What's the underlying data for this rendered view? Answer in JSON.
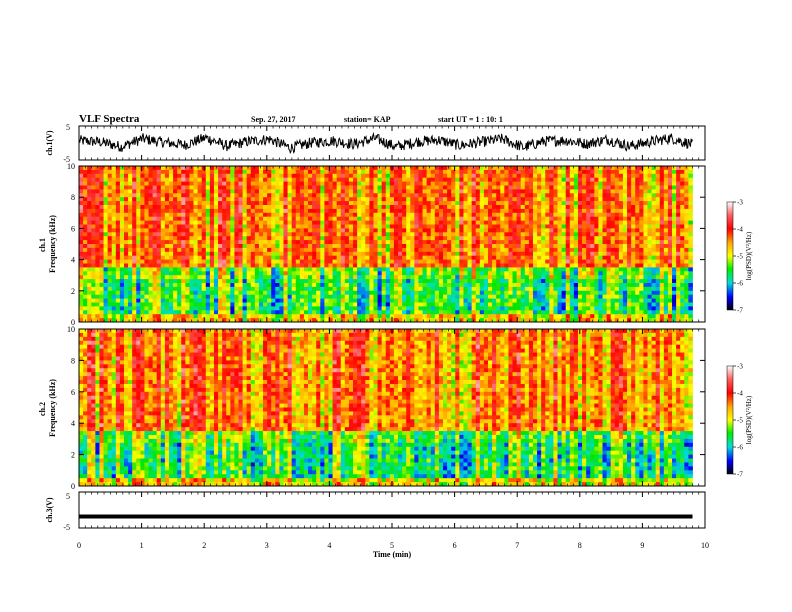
{
  "header": {
    "title": "VLF Spectra",
    "date": "Sep. 27, 2017",
    "station": "station= KAP",
    "start": "start  UT =   1 : 10: 1"
  },
  "chart_data": [
    {
      "type": "line",
      "panel": "ch1-waveform",
      "ylabel": "ch.1(V)",
      "ylim": [
        -5,
        5
      ],
      "yticks": [
        "5",
        "-5"
      ],
      "xlim": [
        0,
        10
      ],
      "x_end": 9.8,
      "description_of_series": "noisy voltage trace around 0 V, amplitude about 1-3 V",
      "series": [
        {
          "values": [
            1.2,
            0.5,
            -1.8,
            2.1,
            0.3,
            -0.9,
            2.6,
            -1.5,
            0.8,
            1.9,
            -2.4,
            0.2,
            1.1,
            -0.6,
            2.3,
            -1.9,
            0.7,
            1.5,
            -1.2,
            0.4,
            2.0,
            -2.2,
            0.9,
            1.3,
            -0.4,
            1.8,
            -1.6,
            0.6,
            2.4,
            -0.8
          ]
        }
      ]
    },
    {
      "type": "heatmap",
      "panel": "ch1-spectrogram",
      "ylabel": "ch.1\nFrequency  (kHz)",
      "ylim": [
        0,
        10
      ],
      "yticks": [
        "0",
        "2",
        "4",
        "6",
        "8",
        "10"
      ],
      "xlim": [
        0,
        10
      ],
      "x_end": 9.8,
      "colorbar": {
        "label": "log(PSD)(V²/Hz)",
        "range": [
          -7,
          -3
        ],
        "ticks": [
          "-3",
          "-4",
          "-5",
          "-6",
          "-7"
        ]
      }
    },
    {
      "type": "heatmap",
      "panel": "ch2-spectrogram",
      "ylabel": "ch.2\nFrequency  (kHz)",
      "ylim": [
        0,
        10
      ],
      "yticks": [
        "0",
        "2",
        "4",
        "6",
        "8",
        "10"
      ],
      "xlim": [
        0,
        10
      ],
      "x_end": 9.8,
      "colorbar": {
        "label": "log(PSD)(V²/Hz)",
        "range": [
          -7,
          -3
        ],
        "ticks": [
          "-3",
          "-4",
          "-5",
          "-6",
          "-7"
        ]
      }
    },
    {
      "type": "line",
      "panel": "ch3-waveform",
      "ylabel": "ch.3(V)",
      "ylim": [
        -5,
        5
      ],
      "yticks": [
        "5",
        "-5"
      ],
      "xlim": [
        0,
        10
      ],
      "x_end": 9.8,
      "series": [
        {
          "values": [
            -1.8,
            -1.8
          ]
        }
      ]
    }
  ],
  "xaxis": {
    "label": "Time  (min)",
    "ticks": [
      "0",
      "1",
      "2",
      "3",
      "4",
      "5",
      "6",
      "7",
      "8",
      "9",
      "10"
    ]
  }
}
